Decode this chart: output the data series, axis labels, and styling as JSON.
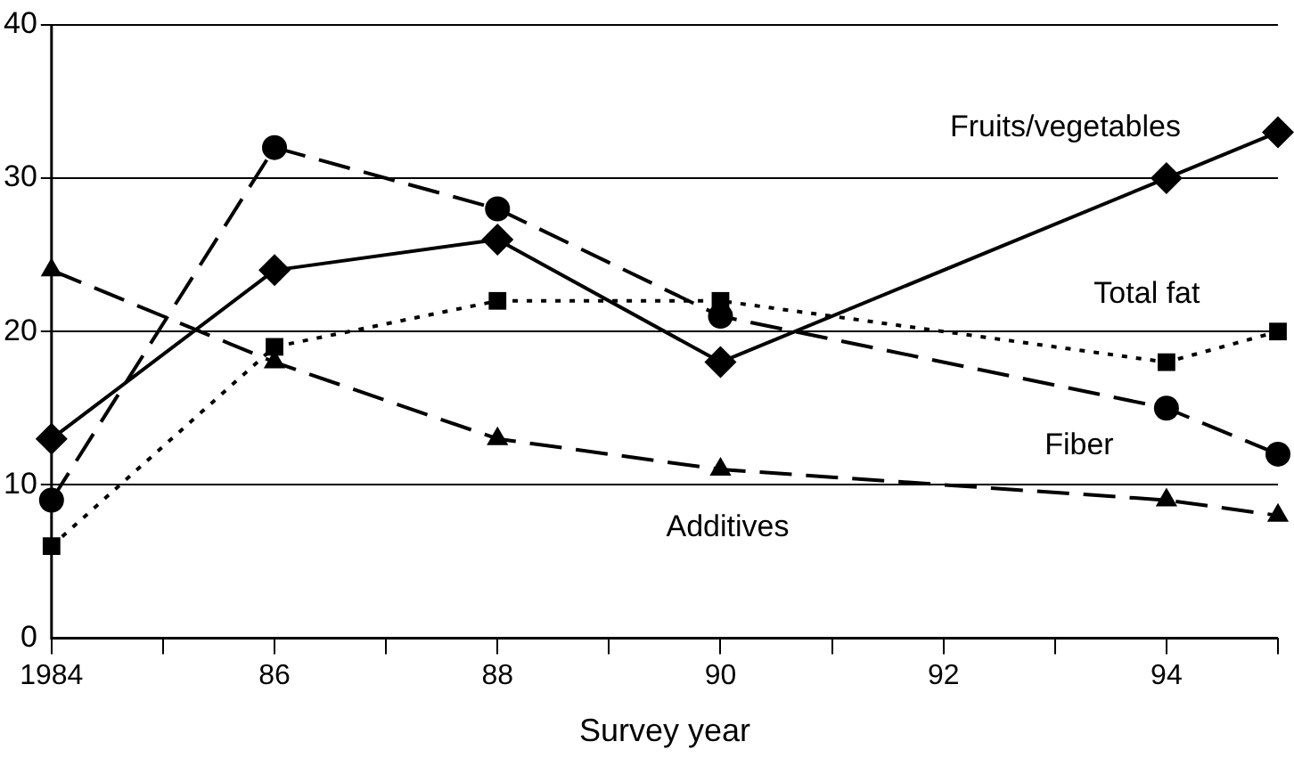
{
  "chart_data": {
    "type": "line",
    "xlabel": "Survey year",
    "x": [
      1984,
      1986,
      1988,
      1990,
      1994,
      1995
    ],
    "xlim": [
      1984,
      1995
    ],
    "xticks": [
      {
        "value": 1984,
        "label": "1984"
      },
      {
        "value": 1985,
        "label": null
      },
      {
        "value": 1986,
        "label": "86"
      },
      {
        "value": 1987,
        "label": null
      },
      {
        "value": 1988,
        "label": "88"
      },
      {
        "value": 1989,
        "label": null
      },
      {
        "value": 1990,
        "label": "90"
      },
      {
        "value": 1991,
        "label": null
      },
      {
        "value": 1992,
        "label": "92"
      },
      {
        "value": 1993,
        "label": null
      },
      {
        "value": 1994,
        "label": "94"
      },
      {
        "value": 1995,
        "label": null
      }
    ],
    "ylim": [
      0,
      40
    ],
    "yticks": [
      0,
      10,
      20,
      30,
      40
    ],
    "grid": "y",
    "legend": false,
    "series": [
      {
        "name": "Fruits/vegetables",
        "color": "#000000",
        "marker": "diamond",
        "line_style": "solid",
        "values": [
          13,
          24,
          26,
          18,
          30,
          33
        ]
      },
      {
        "name": "Total fat",
        "color": "#000000",
        "marker": "square",
        "line_style": "dotted",
        "values": [
          6,
          19,
          22,
          22,
          18,
          20
        ]
      },
      {
        "name": "Fiber",
        "color": "#000000",
        "marker": "circle",
        "line_style": "dashed",
        "values": [
          9,
          32,
          28,
          21,
          15,
          12
        ]
      },
      {
        "name": "Additives",
        "color": "#000000",
        "marker": "triangle",
        "line_style": "dashed",
        "values": [
          24,
          18,
          13,
          11,
          9,
          8
        ]
      }
    ]
  }
}
